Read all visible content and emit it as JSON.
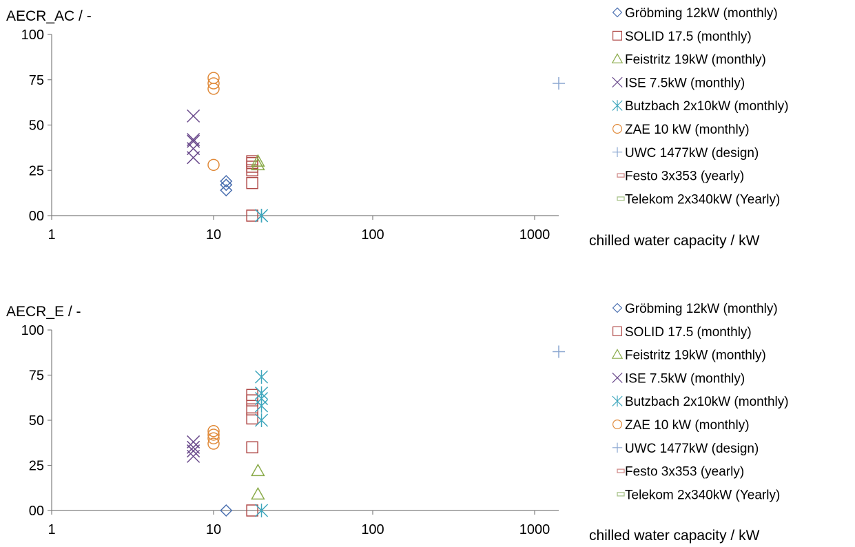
{
  "chart_data": [
    {
      "type": "scatter",
      "ylabel": "AECR_AC / -",
      "xlabel": "chilled water capacity / kW",
      "xscale": "log",
      "xlim": [
        1,
        1477
      ],
      "ylim": [
        0,
        100
      ],
      "x_ticks": [
        "1",
        "10",
        "100",
        "1000"
      ],
      "y_ticks": [
        "100",
        "75",
        "50",
        "25",
        "00"
      ],
      "grid": false,
      "legend_position": "right",
      "series": [
        {
          "name": "Gröbming 12kW (monthly)",
          "marker": "diamond",
          "color": "#4a6fb0",
          "x": [
            12,
            12,
            12
          ],
          "y": [
            14,
            17,
            19
          ]
        },
        {
          "name": "SOLID 17.5 (monthly)",
          "marker": "square",
          "color": "#b04a48",
          "x": [
            17.5,
            17.5,
            17.5,
            17.5,
            17.5,
            17.5
          ],
          "y": [
            18,
            25,
            27,
            29,
            30,
            0
          ]
        },
        {
          "name": "Feistritz 19kW (monthly)",
          "marker": "triangle",
          "color": "#8aab4a",
          "x": [
            19,
            19
          ],
          "y": [
            28,
            30
          ]
        },
        {
          "name": "ISE 7.5kW (monthly)",
          "marker": "x",
          "color": "#6a4a8c",
          "x": [
            7.5,
            7.5,
            7.5,
            7.5,
            7.5
          ],
          "y": [
            32,
            37,
            41,
            42,
            55
          ]
        },
        {
          "name": "Butzbach 2x10kW (monthly)",
          "marker": "asterisk",
          "color": "#3fa7bd",
          "x": [
            20,
            20
          ],
          "y": [
            0,
            0
          ]
        },
        {
          "name": "ZAE 10 kW (monthly)",
          "marker": "circle",
          "color": "#e08a3a",
          "x": [
            10,
            10,
            10,
            10
          ],
          "y": [
            28,
            70,
            73,
            76
          ]
        },
        {
          "name": "UWC 1477kW (design)",
          "marker": "plus",
          "color": "#8aa6d0",
          "x": [
            1477
          ],
          "y": [
            73
          ]
        },
        {
          "name": "Festo 3x353 (yearly)",
          "marker": "dash",
          "color": "#d08a88",
          "x": [],
          "y": []
        },
        {
          "name": "Telekom 2x340kW (Yearly)",
          "marker": "dash",
          "color": "#a8c48a",
          "x": [],
          "y": []
        }
      ]
    },
    {
      "type": "scatter",
      "ylabel": "AECR_E / -",
      "xlabel": "chilled water capacity / kW",
      "xscale": "log",
      "xlim": [
        1,
        1477
      ],
      "ylim": [
        0,
        100
      ],
      "x_ticks": [
        "1",
        "10",
        "100",
        "1000"
      ],
      "y_ticks": [
        "100",
        "75",
        "50",
        "25",
        "00"
      ],
      "grid": false,
      "legend_position": "right",
      "series": [
        {
          "name": "Gröbming 12kW (monthly)",
          "marker": "diamond",
          "color": "#4a6fb0",
          "x": [
            12
          ],
          "y": [
            0
          ]
        },
        {
          "name": "SOLID 17.5 (monthly)",
          "marker": "square",
          "color": "#b04a48",
          "x": [
            17.5,
            17.5,
            17.5,
            17.5,
            17.5,
            17.5
          ],
          "y": [
            35,
            51,
            56,
            61,
            64,
            0
          ]
        },
        {
          "name": "Feistritz 19kW (monthly)",
          "marker": "triangle",
          "color": "#8aab4a",
          "x": [
            19,
            19
          ],
          "y": [
            9,
            22
          ]
        },
        {
          "name": "ISE 7.5kW (monthly)",
          "marker": "x",
          "color": "#6a4a8c",
          "x": [
            7.5,
            7.5,
            7.5,
            7.5
          ],
          "y": [
            30,
            33,
            35,
            38
          ]
        },
        {
          "name": "Butzbach 2x10kW (monthly)",
          "marker": "asterisk",
          "color": "#3fa7bd",
          "x": [
            20,
            20,
            20,
            20,
            20,
            20
          ],
          "y": [
            50,
            58,
            62,
            65,
            74,
            0
          ]
        },
        {
          "name": "ZAE 10 kW (monthly)",
          "marker": "circle",
          "color": "#e08a3a",
          "x": [
            10,
            10,
            10,
            10
          ],
          "y": [
            37,
            40,
            42,
            44
          ]
        },
        {
          "name": "UWC 1477kW (design)",
          "marker": "plus",
          "color": "#8aa6d0",
          "x": [
            1477
          ],
          "y": [
            88
          ]
        },
        {
          "name": "Festo 3x353 (yearly)",
          "marker": "dash",
          "color": "#d08a88",
          "x": [],
          "y": []
        },
        {
          "name": "Telekom 2x340kW (Yearly)",
          "marker": "dash",
          "color": "#a8c48a",
          "x": [],
          "y": []
        }
      ]
    }
  ]
}
